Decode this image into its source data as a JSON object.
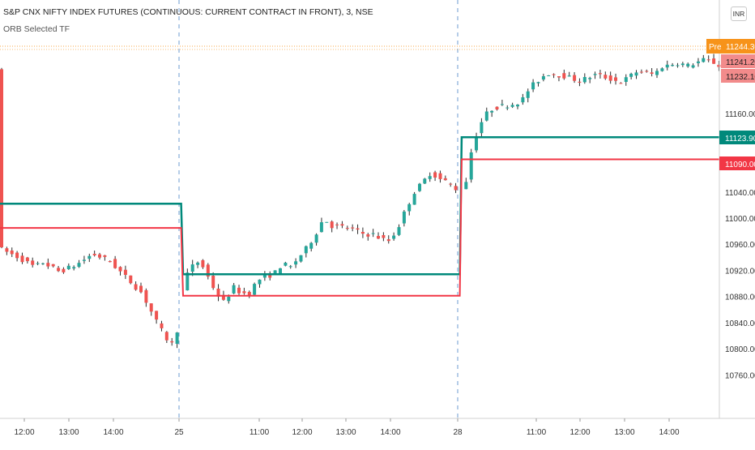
{
  "header": {
    "symbol_title": "S&P CNX NIFTY INDEX FUTURES (CONTINUOUS: CURRENT CONTRACT IN FRONT), 3, NSE",
    "indicator_label": "ORB Selected TF",
    "currency_button": "INR"
  },
  "colors": {
    "up": "#26a69a",
    "down": "#ef5350",
    "wick": "#2b2b2b",
    "orb_high": "#00897b",
    "orb_low": "#f23645",
    "badge_orange": "#f7931a",
    "badge_red_light": "#f28b8b",
    "session_divider": "#6c9bd2",
    "premarket_line": "#f7931a"
  },
  "price_badges": {
    "premarket_label": "Pre",
    "last_price": "11244.30",
    "level_1": "11241.20",
    "level_2": "11232.10",
    "orb_high": "11123.90",
    "orb_low": "11090.00"
  },
  "chart_data": {
    "type": "candlestick",
    "y_ticks": [
      "11160.00",
      "11040.00",
      "11000.00",
      "10960.00",
      "10920.00",
      "10880.00",
      "10840.00",
      "10800.00",
      "10760.00"
    ],
    "y_tick_values": [
      11160,
      11040,
      11000,
      10960,
      10920,
      10880,
      10840,
      10800,
      10760
    ],
    "x_ticks": [
      "12:00",
      "13:00",
      "14:00",
      "25",
      "11:00",
      "12:00",
      "13:00",
      "14:00",
      "28",
      "11:00",
      "12:00",
      "13:00",
      "14:00"
    ],
    "sessions": [
      "24",
      "25",
      "28"
    ],
    "orb_levels": [
      {
        "session": "24",
        "high": 11022,
        "low": 10985
      },
      {
        "session": "25",
        "high": 10914,
        "low": 10881
      },
      {
        "session": "28",
        "high": 11123.9,
        "low": 11090
      }
    ],
    "price_path": [
      {
        "t": 0,
        "p": 10952
      },
      {
        "t": 2,
        "p": 10940
      },
      {
        "t": 4,
        "p": 10925
      },
      {
        "t": 5,
        "p": 10932
      },
      {
        "t": 7,
        "p": 10918
      },
      {
        "t": 9,
        "p": 10928
      },
      {
        "t": 11,
        "p": 10945
      },
      {
        "t": 13,
        "p": 10935
      },
      {
        "t": 15,
        "p": 10910
      },
      {
        "t": 17,
        "p": 10885
      },
      {
        "t": 18,
        "p": 10860
      },
      {
        "t": 19,
        "p": 10835
      },
      {
        "t": 20,
        "p": 10815
      },
      {
        "t": 21,
        "p": 10803
      },
      {
        "t": 22,
        "p": 10905
      },
      {
        "t": 23,
        "p": 10925
      },
      {
        "t": 24,
        "p": 10935
      },
      {
        "t": 25,
        "p": 10910
      },
      {
        "t": 26,
        "p": 10885
      },
      {
        "t": 27,
        "p": 10870
      },
      {
        "t": 28,
        "p": 10895
      },
      {
        "t": 29,
        "p": 10885
      },
      {
        "t": 30,
        "p": 10885
      },
      {
        "t": 31,
        "p": 10905
      },
      {
        "t": 33,
        "p": 10915
      },
      {
        "t": 34,
        "p": 10930
      },
      {
        "t": 35,
        "p": 10925
      },
      {
        "t": 37,
        "p": 10955
      },
      {
        "t": 38,
        "p": 10975
      },
      {
        "t": 39,
        "p": 11000
      },
      {
        "t": 40,
        "p": 10988
      },
      {
        "t": 42,
        "p": 10985
      },
      {
        "t": 44,
        "p": 10975
      },
      {
        "t": 45,
        "p": 10975
      },
      {
        "t": 46,
        "p": 10968
      },
      {
        "t": 47,
        "p": 10965
      },
      {
        "t": 48,
        "p": 10985
      },
      {
        "t": 49,
        "p": 11015
      },
      {
        "t": 50,
        "p": 11040
      },
      {
        "t": 51,
        "p": 11055
      },
      {
        "t": 52,
        "p": 11070
      },
      {
        "t": 53,
        "p": 11060
      },
      {
        "t": 54,
        "p": 11055
      },
      {
        "t": 55,
        "p": 11045
      },
      {
        "t": 56,
        "p": 11040
      },
      {
        "t": 57,
        "p": 11110
      },
      {
        "t": 58,
        "p": 11145
      },
      {
        "t": 59,
        "p": 11165
      },
      {
        "t": 60,
        "p": 11170
      },
      {
        "t": 62,
        "p": 11175
      },
      {
        "t": 63,
        "p": 11180
      },
      {
        "t": 64,
        "p": 11200
      },
      {
        "t": 66,
        "p": 11222
      },
      {
        "t": 68,
        "p": 11218
      },
      {
        "t": 70,
        "p": 11210
      },
      {
        "t": 72,
        "p": 11220
      },
      {
        "t": 74,
        "p": 11212
      },
      {
        "t": 75,
        "p": 11208
      },
      {
        "t": 77,
        "p": 11225
      },
      {
        "t": 79,
        "p": 11220
      },
      {
        "t": 80,
        "p": 11232
      },
      {
        "t": 82,
        "p": 11238
      },
      {
        "t": 83,
        "p": 11233
      },
      {
        "t": 85,
        "p": 11242
      },
      {
        "t": 86,
        "p": 11240
      },
      {
        "t": 87,
        "p": 11232
      }
    ]
  }
}
